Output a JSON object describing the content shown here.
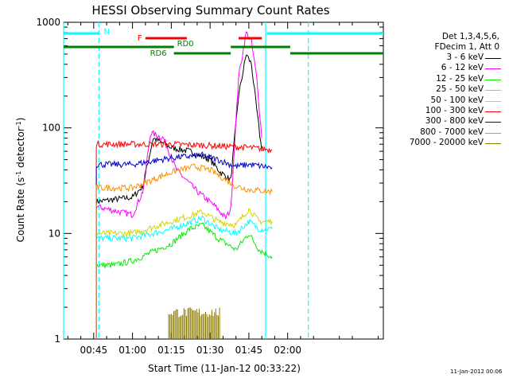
{
  "chart_data": {
    "type": "line",
    "title": "HESSI Observing Summary Count Rates",
    "xlabel": "Start Time (11-Jan-12 00:33:22)",
    "ylabel": "Count Rate (s⁻¹ detector⁻¹)",
    "ylabel_main": "Count Rate (s",
    "ylabel_exp1": "-1",
    "ylabel_mid": " detector",
    "ylabel_exp2": "-1",
    "ylabel_end": ")",
    "y_scale": "log",
    "ylim": [
      1,
      1000
    ],
    "xlim": [
      "00:33:22",
      "02:37"
    ],
    "x_ticks": [
      "00:45",
      "01:00",
      "01:15",
      "01:30",
      "01:45",
      "02:00"
    ],
    "y_ticks": [
      "1",
      "10",
      "100",
      "1000"
    ],
    "grid": false,
    "legend_position": "right",
    "legend_header": [
      "Det 1,3,4,5,6,",
      "FDecim 1, Att 0"
    ],
    "legend": [
      {
        "label": "3 - 6 keV",
        "color": "#000000"
      },
      {
        "label": "6 - 12 keV",
        "color": "#ff00ff"
      },
      {
        "label": "12 - 25 keV",
        "color": "#00ee00"
      },
      {
        "label": "25 - 50 keV",
        "color": "#00ffff"
      },
      {
        "label": "50 - 100 keV",
        "color": "#d4d400"
      },
      {
        "label": "100 - 300 keV",
        "color": "#ff0000"
      },
      {
        "label": "300 - 800 keV",
        "color": "#0000cc"
      },
      {
        "label": "800 - 7000 keV",
        "color": "#ff8c00"
      },
      {
        "label": "7000 - 20000 keV",
        "color": "#8b7a00"
      }
    ],
    "series": [
      {
        "name": "3 - 6 keV",
        "color": "#000000",
        "points": [
          [
            "00:46",
            20
          ],
          [
            "01:00",
            22
          ],
          [
            "01:04",
            28
          ],
          [
            "01:08",
            80
          ],
          [
            "01:15",
            65
          ],
          [
            "01:22",
            60
          ],
          [
            "01:30",
            50
          ],
          [
            "01:34",
            38
          ],
          [
            "01:38",
            32
          ],
          [
            "01:41",
            200
          ],
          [
            "01:44",
            500
          ],
          [
            "01:46",
            400
          ],
          [
            "01:48",
            150
          ],
          [
            "01:50",
            60
          ]
        ]
      },
      {
        "name": "6 - 12 keV",
        "color": "#ff00ff",
        "points": [
          [
            "00:46",
            18
          ],
          [
            "01:00",
            15
          ],
          [
            "01:04",
            25
          ],
          [
            "01:07",
            90
          ],
          [
            "01:12",
            80
          ],
          [
            "01:17",
            40
          ],
          [
            "01:25",
            25
          ],
          [
            "01:32",
            18
          ],
          [
            "01:36",
            14
          ],
          [
            "01:38",
            17
          ],
          [
            "01:41",
            300
          ],
          [
            "01:44",
            800
          ],
          [
            "01:46",
            650
          ],
          [
            "01:48",
            300
          ],
          [
            "01:50",
            80
          ]
        ]
      },
      {
        "name": "12 - 25 keV",
        "color": "#00ee00",
        "points": [
          [
            "00:46",
            5
          ],
          [
            "00:53",
            5
          ],
          [
            "01:00",
            5.5
          ],
          [
            "01:15",
            8
          ],
          [
            "01:22",
            11
          ],
          [
            "01:27",
            12
          ],
          [
            "01:33",
            9
          ],
          [
            "01:40",
            7
          ],
          [
            "01:45",
            10
          ],
          [
            "01:49",
            7
          ],
          [
            "01:54",
            6
          ]
        ]
      },
      {
        "name": "25 - 50 keV",
        "color": "#00ffff",
        "points": [
          [
            "00:46",
            9
          ],
          [
            "01:00",
            9
          ],
          [
            "01:15",
            11
          ],
          [
            "01:27",
            14
          ],
          [
            "01:33",
            11
          ],
          [
            "01:40",
            10
          ],
          [
            "01:45",
            13
          ],
          [
            "01:49",
            11
          ],
          [
            "01:54",
            11
          ]
        ]
      },
      {
        "name": "50 - 100 keV",
        "color": "#d4d400",
        "points": [
          [
            "00:46",
            10
          ],
          [
            "01:00",
            10
          ],
          [
            "01:15",
            13
          ],
          [
            "01:27",
            16
          ],
          [
            "01:33",
            13
          ],
          [
            "01:40",
            12
          ],
          [
            "01:45",
            17
          ],
          [
            "01:49",
            13
          ],
          [
            "01:54",
            13
          ]
        ]
      },
      {
        "name": "100 - 300 keV",
        "color": "#ff0000",
        "points": [
          [
            "00:46",
            70
          ],
          [
            "01:00",
            70
          ],
          [
            "01:15",
            70
          ],
          [
            "01:30",
            68
          ],
          [
            "01:45",
            65
          ],
          [
            "01:54",
            62
          ]
        ]
      },
      {
        "name": "300 - 800 keV",
        "color": "#0000cc",
        "points": [
          [
            "00:46",
            45
          ],
          [
            "01:00",
            45
          ],
          [
            "01:15",
            52
          ],
          [
            "01:27",
            55
          ],
          [
            "01:33",
            50
          ],
          [
            "01:40",
            43
          ],
          [
            "01:45",
            45
          ],
          [
            "01:54",
            42
          ]
        ]
      },
      {
        "name": "800 - 7000 keV",
        "color": "#ff8c00",
        "points": [
          [
            "00:46",
            27
          ],
          [
            "01:00",
            27
          ],
          [
            "01:15",
            38
          ],
          [
            "01:24",
            43
          ],
          [
            "01:30",
            40
          ],
          [
            "01:40",
            28
          ],
          [
            "01:45",
            26
          ],
          [
            "01:54",
            25
          ]
        ]
      },
      {
        "name": "7000 - 20000 keV",
        "color": "#8b7a00",
        "points": [
          [
            "00:46",
            1
          ],
          [
            "01:54",
            1
          ]
        ]
      }
    ],
    "markers": [
      {
        "label": "N",
        "color": "#00ffff",
        "start": "00:33:22",
        "end": "00:47"
      },
      {
        "label": "",
        "color": "#00ffff",
        "start": "01:52",
        "end": "02:37"
      },
      {
        "label": "F",
        "color": "#ff0000",
        "start": "01:05",
        "end": "01:21"
      },
      {
        "label": "",
        "color": "#ff0000",
        "start": "01:41",
        "end": "01:50"
      },
      {
        "label": "RD0",
        "color": "#008000",
        "start": "00:33:22",
        "end": "01:16"
      },
      {
        "label": "",
        "color": "#008000",
        "start": "01:38",
        "end": "02:01"
      },
      {
        "label": "RD6",
        "color": "#008000",
        "start": "01:16",
        "end": "01:38"
      },
      {
        "label": "",
        "color": "#008000",
        "start": "02:01",
        "end": "02:37"
      }
    ],
    "night_lines": [
      "00:47",
      "02:08"
    ],
    "day_lines": [
      "00:33:22",
      "01:51:30"
    ]
  },
  "timestamp": "11-Jan-2012 00:06"
}
